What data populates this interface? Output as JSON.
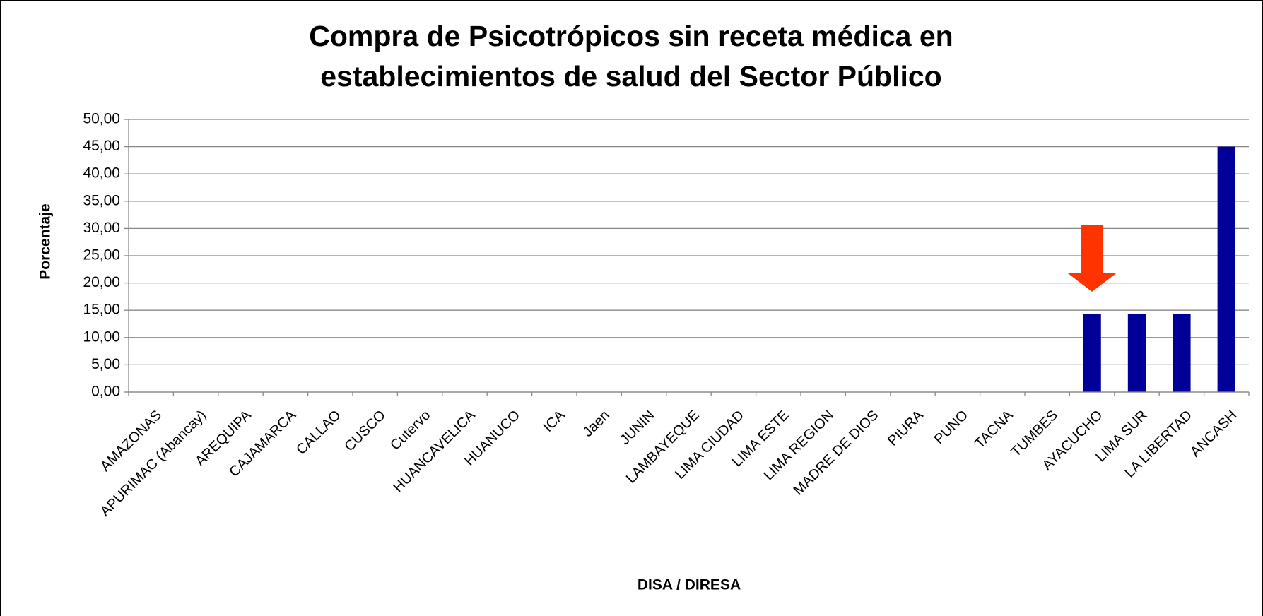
{
  "chart_data": {
    "type": "bar",
    "title": [
      "Compra de Psicotrópicos sin receta médica en",
      "establecimientos de salud del Sector Público"
    ],
    "x_label": "DISA / DIRESA",
    "y_label": "Porcentaje",
    "categories": [
      "AMAZONAS",
      "APURIMAC (Abancay)",
      "AREQUIPA",
      "CAJAMARCA",
      "CALLAO",
      "CUSCO",
      "Cutervo",
      "HUANCAVELICA",
      "HUANUCO",
      "ICA",
      "Jaen",
      "JUNIN",
      "LAMBAYEQUE",
      "LIMA CIUDAD",
      "LIMA ESTE",
      "LIMA REGION",
      "MADRE DE DIOS",
      "PIURA",
      "PUNO",
      "TACNA",
      "TUMBES",
      "AYACUCHO",
      "LIMA SUR",
      "LA LIBERTAD",
      "ANCASH"
    ],
    "values": [
      0,
      0,
      0,
      0,
      0,
      0,
      0,
      0,
      0,
      0,
      0,
      0,
      0,
      0,
      0,
      0,
      0,
      0,
      0,
      0,
      0,
      14.29,
      14.29,
      14.29,
      45
    ],
    "color": "#000099",
    "ylim": [
      0,
      50
    ],
    "yticks": [
      {
        "value": 0,
        "label": "0,00"
      },
      {
        "value": 5,
        "label": "5,00"
      },
      {
        "value": 10,
        "label": "10,00"
      },
      {
        "value": 15,
        "label": "15,00"
      },
      {
        "value": 20,
        "label": "20,00"
      },
      {
        "value": 25,
        "label": "25,00"
      },
      {
        "value": 30,
        "label": "30,00"
      },
      {
        "value": 35,
        "label": "35,00"
      },
      {
        "value": 40,
        "label": "40,00"
      },
      {
        "value": 45,
        "label": "45,00"
      },
      {
        "value": 50,
        "label": "50,00"
      }
    ],
    "grid": true
  }
}
